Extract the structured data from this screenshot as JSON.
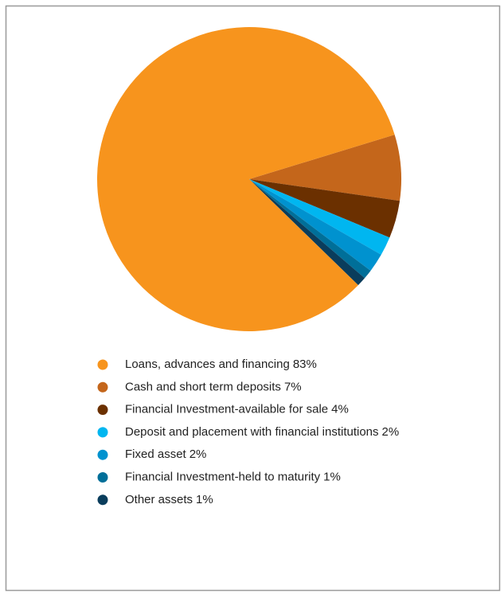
{
  "chart_data": {
    "type": "pie",
    "categories": [
      "Loans, advances and financing",
      "Cash and short term deposits",
      "Financial Investment-available for sale",
      "Deposit and placement with financial institutions",
      "Fixed asset",
      "Financial Investment-held to maturity",
      "Other assets"
    ],
    "values": [
      83,
      7,
      4,
      2,
      2,
      1,
      1
    ],
    "value_labels": [
      "83%",
      "7%",
      "4%",
      "2%",
      "2%",
      "1%",
      "1%"
    ],
    "colors": [
      "#f7941d",
      "#c4661b",
      "#6b3000",
      "#00b6f0",
      "#0092cf",
      "#006f99",
      "#0a3d5c"
    ]
  }
}
